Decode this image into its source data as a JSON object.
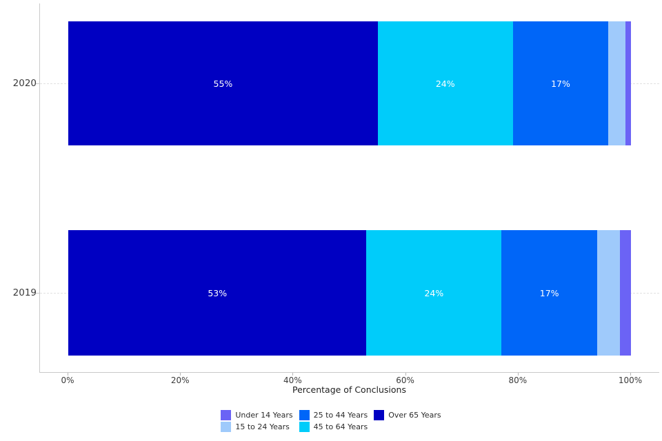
{
  "chart_data": {
    "type": "bar",
    "orientation": "horizontal",
    "stacked": true,
    "title": "",
    "xlabel": "Percentage of Conclusions",
    "ylabel": "",
    "xlim": [
      0,
      100
    ],
    "x_tick_labels": [
      "0%",
      "20%",
      "40%",
      "60%",
      "80%",
      "100%"
    ],
    "categories": [
      "2020",
      "2019"
    ],
    "series": [
      {
        "name": "Over 65 Years",
        "color": "#0000C2",
        "values": [
          55,
          53
        ],
        "labels": [
          "55%",
          "53%"
        ]
      },
      {
        "name": "45 to 64 Years",
        "color": "#00CCFA",
        "values": [
          24,
          24
        ],
        "labels": [
          "24%",
          "24%"
        ]
      },
      {
        "name": "25 to 44 Years",
        "color": "#0066F8",
        "values": [
          17,
          17
        ],
        "labels": [
          "17%",
          "17%"
        ]
      },
      {
        "name": "15 to 24 Years",
        "color": "#9FCAFB",
        "values": [
          3,
          4
        ],
        "labels": [
          "",
          ""
        ]
      },
      {
        "name": "Under 14 Years",
        "color": "#6B63F5",
        "values": [
          1,
          2
        ],
        "labels": [
          "",
          ""
        ]
      }
    ],
    "legend": {
      "position": "bottom",
      "items": [
        {
          "label": "Under 14 Years",
          "color": "#6B63F5"
        },
        {
          "label": "15 to 24 Years",
          "color": "#9FCAFB"
        },
        {
          "label": "25 to 44 Years",
          "color": "#0066F8"
        },
        {
          "label": "45 to 64 Years",
          "color": "#00CCFA"
        },
        {
          "label": "Over 65 Years",
          "color": "#0000C2"
        }
      ]
    },
    "grid": "horizontal-dashed-at-categories",
    "bar_label_color": "#FFFFFF"
  }
}
